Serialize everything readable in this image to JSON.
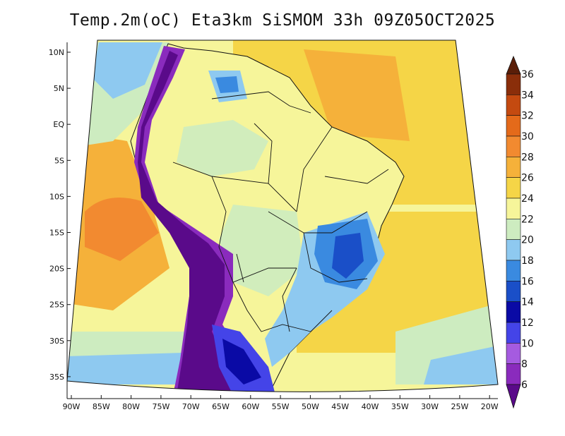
{
  "title": "Temp.2m(oC) Eta3km SiSMOM 33h 09Z05OCT2025",
  "x_ticks": [
    "90W",
    "85W",
    "80W",
    "75W",
    "70W",
    "65W",
    "60W",
    "55W",
    "50W",
    "45W",
    "40W",
    "35W",
    "30W",
    "25W",
    "20W"
  ],
  "y_ticks": [
    "10N",
    "5N",
    "EQ",
    "5S",
    "10S",
    "15S",
    "20S",
    "25S",
    "30S",
    "35S"
  ],
  "colorbar": {
    "labels": [
      "6",
      "8",
      "10",
      "12",
      "14",
      "16",
      "18",
      "20",
      "22",
      "24",
      "26",
      "28",
      "30",
      "32",
      "34",
      "36"
    ],
    "colors": [
      "#5a0a8a",
      "#8a2bbd",
      "#a55be0",
      "#4444e8",
      "#0a0aa5",
      "#1a4fc8",
      "#3a8ae0",
      "#8ec9f0",
      "#cdecc0",
      "#f6f59a",
      "#f5d547",
      "#f5b13a",
      "#f28a30",
      "#e46a1a",
      "#c44a10",
      "#8a2e0a",
      "#5a1e08"
    ]
  },
  "palette": {
    "ocean_south": "#f6f59a",
    "ocean_north": "#f5d547",
    "ocean_warm": "#f5b13a",
    "ocean_hot": "#f28a30",
    "ocean_cool": "#cdecc0",
    "ocean_cold": "#8ec9f0",
    "land_base": "#f6f59a",
    "land_cool": "#cdecc0",
    "land_cold": "#8ec9f0",
    "highland_blue": "#3a8ae0",
    "highland_dark": "#1a4fc8",
    "andes": "#5a0a8a",
    "andes_edge": "#8a2bbd",
    "border": "#111111"
  }
}
